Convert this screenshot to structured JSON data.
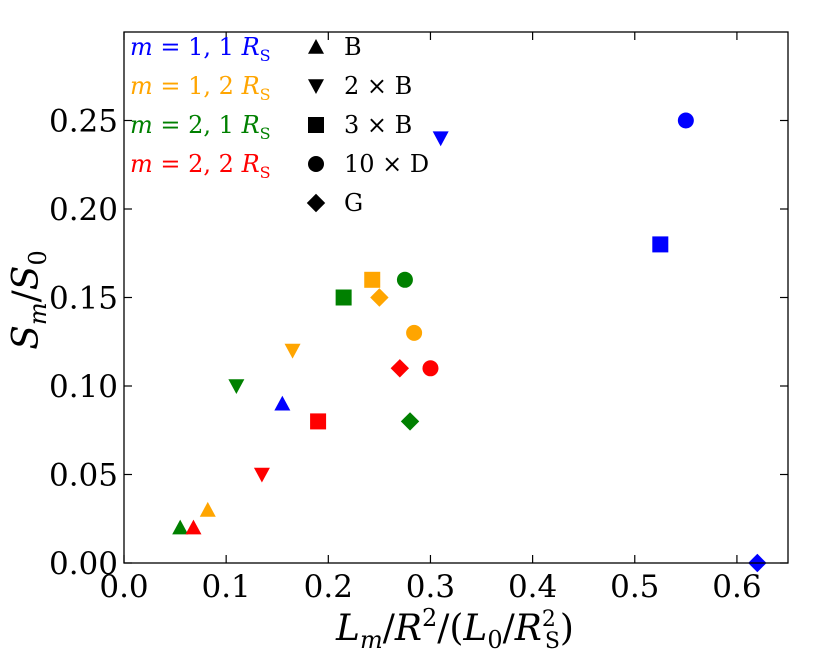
{
  "chart_data": {
    "type": "scatter",
    "xlabel": "L_m/R^2/(L_0/R_S^2)",
    "ylabel": "S_m/S_0",
    "xlim": [
      0.0,
      0.65
    ],
    "ylim": [
      0.0,
      0.3
    ],
    "grid": false,
    "x_ticks": [
      "0.0",
      "0.1",
      "0.2",
      "0.3",
      "0.4",
      "0.5",
      "0.6"
    ],
    "y_ticks": [
      "0.00",
      "0.05",
      "0.10",
      "0.15",
      "0.20",
      "0.25"
    ],
    "x_tick_values": [
      0.0,
      0.1,
      0.2,
      0.3,
      0.4,
      0.5,
      0.6
    ],
    "y_tick_values": [
      0.0,
      0.05,
      0.1,
      0.15,
      0.2,
      0.25
    ],
    "color_legend": [
      {
        "label": "m = 1, 1 R_S",
        "color": "#0000ff"
      },
      {
        "label": "m = 1, 2 R_S",
        "color": "#ffa500"
      },
      {
        "label": "m = 2, 1 R_S",
        "color": "#008000"
      },
      {
        "label": "m = 2, 2 R_S",
        "color": "#ff0000"
      }
    ],
    "marker_legend": [
      {
        "label": "B",
        "marker": "triangle-up"
      },
      {
        "label": "2 × B",
        "marker": "triangle-down"
      },
      {
        "label": "3 × B",
        "marker": "square"
      },
      {
        "label": "10 × D",
        "marker": "circle"
      },
      {
        "label": "G",
        "marker": "diamond"
      }
    ],
    "series": [
      {
        "name": "m = 1, 1 R_S",
        "color": "#0000ff",
        "points": [
          {
            "marker": "triangle-up",
            "x": 0.155,
            "y": 0.09
          },
          {
            "marker": "triangle-down",
            "x": 0.31,
            "y": 0.24
          },
          {
            "marker": "square",
            "x": 0.525,
            "y": 0.18
          },
          {
            "marker": "circle",
            "x": 0.55,
            "y": 0.25
          },
          {
            "marker": "diamond",
            "x": 0.62,
            "y": 0.0
          }
        ]
      },
      {
        "name": "m = 1, 2 R_S",
        "color": "#ffa500",
        "points": [
          {
            "marker": "triangle-up",
            "x": 0.082,
            "y": 0.03
          },
          {
            "marker": "triangle-down",
            "x": 0.165,
            "y": 0.12
          },
          {
            "marker": "square",
            "x": 0.243,
            "y": 0.16
          },
          {
            "marker": "circle",
            "x": 0.284,
            "y": 0.13
          },
          {
            "marker": "diamond",
            "x": 0.25,
            "y": 0.15
          }
        ]
      },
      {
        "name": "m = 2, 1 R_S",
        "color": "#008000",
        "points": [
          {
            "marker": "triangle-up",
            "x": 0.055,
            "y": 0.02
          },
          {
            "marker": "triangle-down",
            "x": 0.11,
            "y": 0.1
          },
          {
            "marker": "square",
            "x": 0.215,
            "y": 0.15
          },
          {
            "marker": "circle",
            "x": 0.275,
            "y": 0.16
          },
          {
            "marker": "diamond",
            "x": 0.28,
            "y": 0.08
          }
        ]
      },
      {
        "name": "m = 2, 2 R_S",
        "color": "#ff0000",
        "points": [
          {
            "marker": "triangle-up",
            "x": 0.068,
            "y": 0.02
          },
          {
            "marker": "triangle-down",
            "x": 0.135,
            "y": 0.05
          },
          {
            "marker": "square",
            "x": 0.19,
            "y": 0.08
          },
          {
            "marker": "circle",
            "x": 0.3,
            "y": 0.11
          },
          {
            "marker": "diamond",
            "x": 0.27,
            "y": 0.11
          }
        ]
      }
    ]
  }
}
